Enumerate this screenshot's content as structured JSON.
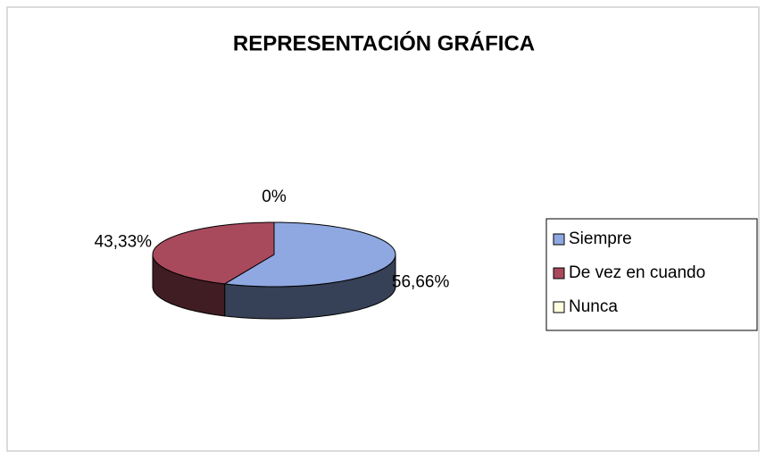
{
  "chart_data": {
    "type": "pie3d",
    "title": "REPRESENTACIÓN GRÁFICA",
    "categories": [
      "Siempre",
      "De vez en cuando",
      "Nunca"
    ],
    "values": [
      56.66,
      43.33,
      0
    ],
    "value_labels": [
      "56,66%",
      "43,33%",
      "0%"
    ],
    "colors": [
      "#8fa8e2",
      "#a94a5c",
      "#ffffe0"
    ],
    "legend": "right"
  }
}
